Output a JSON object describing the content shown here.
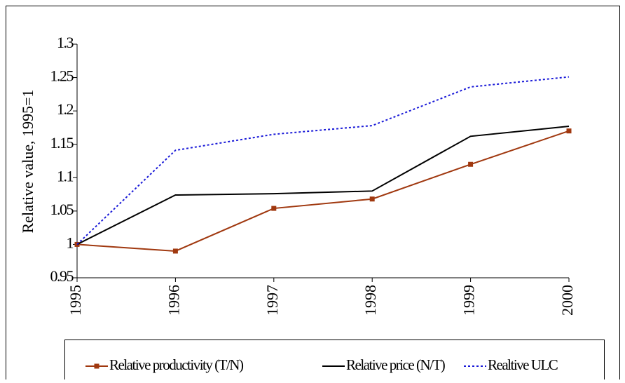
{
  "chart_data": {
    "type": "line",
    "y_label": "Relative value, 1995=1",
    "categories": [
      "1995",
      "1996",
      "1997",
      "1998",
      "1999",
      "2000"
    ],
    "series": [
      {
        "name": "Relative productivity (T/N)",
        "color": "#a0380f",
        "marker": "square",
        "dash": "solid",
        "values": [
          1,
          0.99,
          1.054,
          1.068,
          1.12,
          1.17
        ]
      },
      {
        "name": "Relative price (N/T)",
        "color": "#000000",
        "marker": "none",
        "dash": "solid",
        "values": [
          1,
          1.074,
          1.076,
          1.08,
          1.162,
          1.177
        ]
      },
      {
        "name": "Realtive ULC",
        "color": "#1a1ad8",
        "marker": "none",
        "dash": "dotted",
        "values": [
          1,
          1.141,
          1.165,
          1.178,
          1.236,
          1.251
        ]
      }
    ],
    "ylim": [
      0.95,
      1.3
    ],
    "yticks": [
      0.95,
      1,
      1.05,
      1.1,
      1.15,
      1.2,
      1.25,
      1.3
    ],
    "grid": false,
    "legend": "bottom"
  }
}
